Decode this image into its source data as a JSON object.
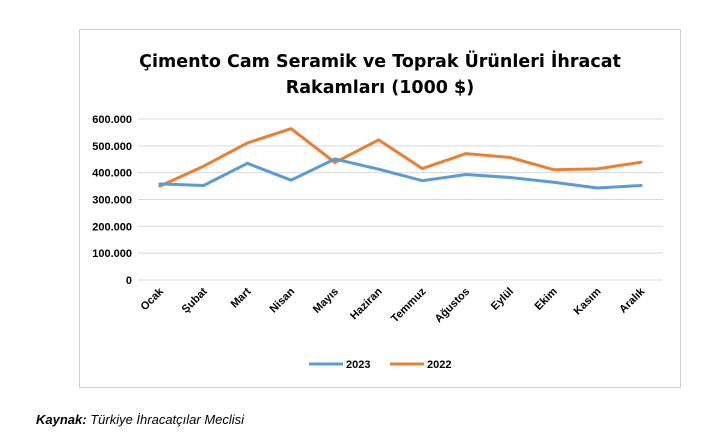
{
  "chart_data": {
    "type": "line",
    "title_lines": [
      "Çimento Cam Seramik ve Toprak Ürünleri İhracat",
      "Rakamları (1000 $)"
    ],
    "categories": [
      "Ocak",
      "Şubat",
      "Mart",
      "Nisan",
      "Mayıs",
      "Haziran",
      "Temmuz",
      "Ağustos",
      "Eylül",
      "Ekim",
      "Kasım",
      "Aralık"
    ],
    "series": [
      {
        "name": "2023",
        "color": "#5b9bd5",
        "values": [
          358000,
          352000,
          435000,
          372000,
          451000,
          413000,
          370000,
          393000,
          382000,
          364000,
          343000,
          352000
        ]
      },
      {
        "name": "2022",
        "color": "#ed7d31",
        "values": [
          350000,
          424000,
          511000,
          564000,
          438000,
          522000,
          415000,
          471000,
          457000,
          411000,
          414000,
          439000
        ]
      }
    ],
    "yticks": [
      "0",
      "100.000",
      "200.000",
      "300.000",
      "400.000",
      "500.000",
      "600.000"
    ],
    "ylim": [
      0,
      600000
    ],
    "grid": true,
    "legend_position": "bottom"
  },
  "source": {
    "label": "Kaynak:",
    "text": " Türkiye İhracatçılar Meclisi"
  }
}
